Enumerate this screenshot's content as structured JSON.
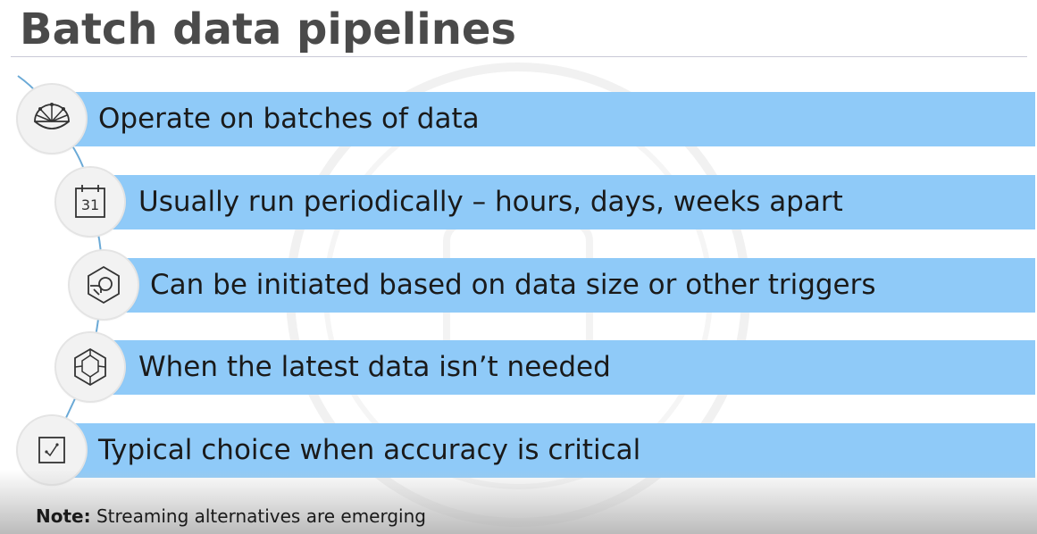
{
  "title": "Batch data pipelines",
  "items": [
    {
      "icon": "dashboard-gauge-icon",
      "text": "Operate on batches of data"
    },
    {
      "icon": "calendar-icon",
      "icon_label": "31",
      "text": "Usually run periodically – hours, days, weeks apart"
    },
    {
      "icon": "gear-hand-icon",
      "text": "Can be initiated based on data size or other triggers"
    },
    {
      "icon": "hexagon-network-icon",
      "text": "When the latest data isn’t needed"
    },
    {
      "icon": "checklist-icon",
      "text": "Typical choice when accuracy is critical"
    }
  ],
  "note": {
    "label": "Note:",
    "text": "Streaming alternatives are emerging"
  }
}
